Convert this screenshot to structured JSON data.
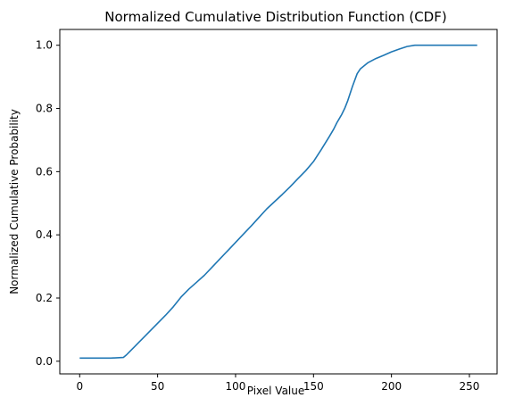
{
  "chart_data": {
    "type": "line",
    "title": "Normalized Cumulative Distribution Function (CDF)",
    "xlabel": "Pixel Value",
    "ylabel": "Normalized Cumulative Probability",
    "xlim": [
      -12.75,
      267.75
    ],
    "ylim": [
      -0.04,
      1.05
    ],
    "xticks": [
      0,
      50,
      100,
      150,
      200,
      250
    ],
    "yticks": [
      0.0,
      0.2,
      0.4,
      0.6,
      0.8,
      1.0
    ],
    "ytick_labels": [
      "0.0",
      "0.2",
      "0.4",
      "0.6",
      "0.8",
      "1.0"
    ],
    "grid": false,
    "series": [
      {
        "color": "#1f77b4",
        "x": [
          0,
          10,
          20,
          28,
          30,
          32,
          35,
          38,
          40,
          45,
          50,
          55,
          60,
          65,
          70,
          75,
          80,
          85,
          90,
          95,
          100,
          105,
          110,
          115,
          120,
          125,
          130,
          135,
          140,
          145,
          150,
          155,
          160,
          163,
          165,
          168,
          170,
          172,
          175,
          178,
          180,
          185,
          190,
          195,
          200,
          205,
          210,
          215,
          220,
          230,
          240,
          255
        ],
        "y": [
          0.01,
          0.01,
          0.01,
          0.012,
          0.02,
          0.03,
          0.045,
          0.06,
          0.07,
          0.095,
          0.12,
          0.145,
          0.172,
          0.203,
          0.228,
          0.25,
          0.272,
          0.298,
          0.324,
          0.35,
          0.376,
          0.402,
          0.428,
          0.455,
          0.482,
          0.505,
          0.528,
          0.552,
          0.578,
          0.603,
          0.632,
          0.67,
          0.71,
          0.735,
          0.755,
          0.78,
          0.8,
          0.825,
          0.87,
          0.91,
          0.925,
          0.945,
          0.958,
          0.968,
          0.979,
          0.988,
          0.996,
          1.0,
          1.0,
          1.0,
          1.0,
          1.0
        ]
      }
    ]
  }
}
